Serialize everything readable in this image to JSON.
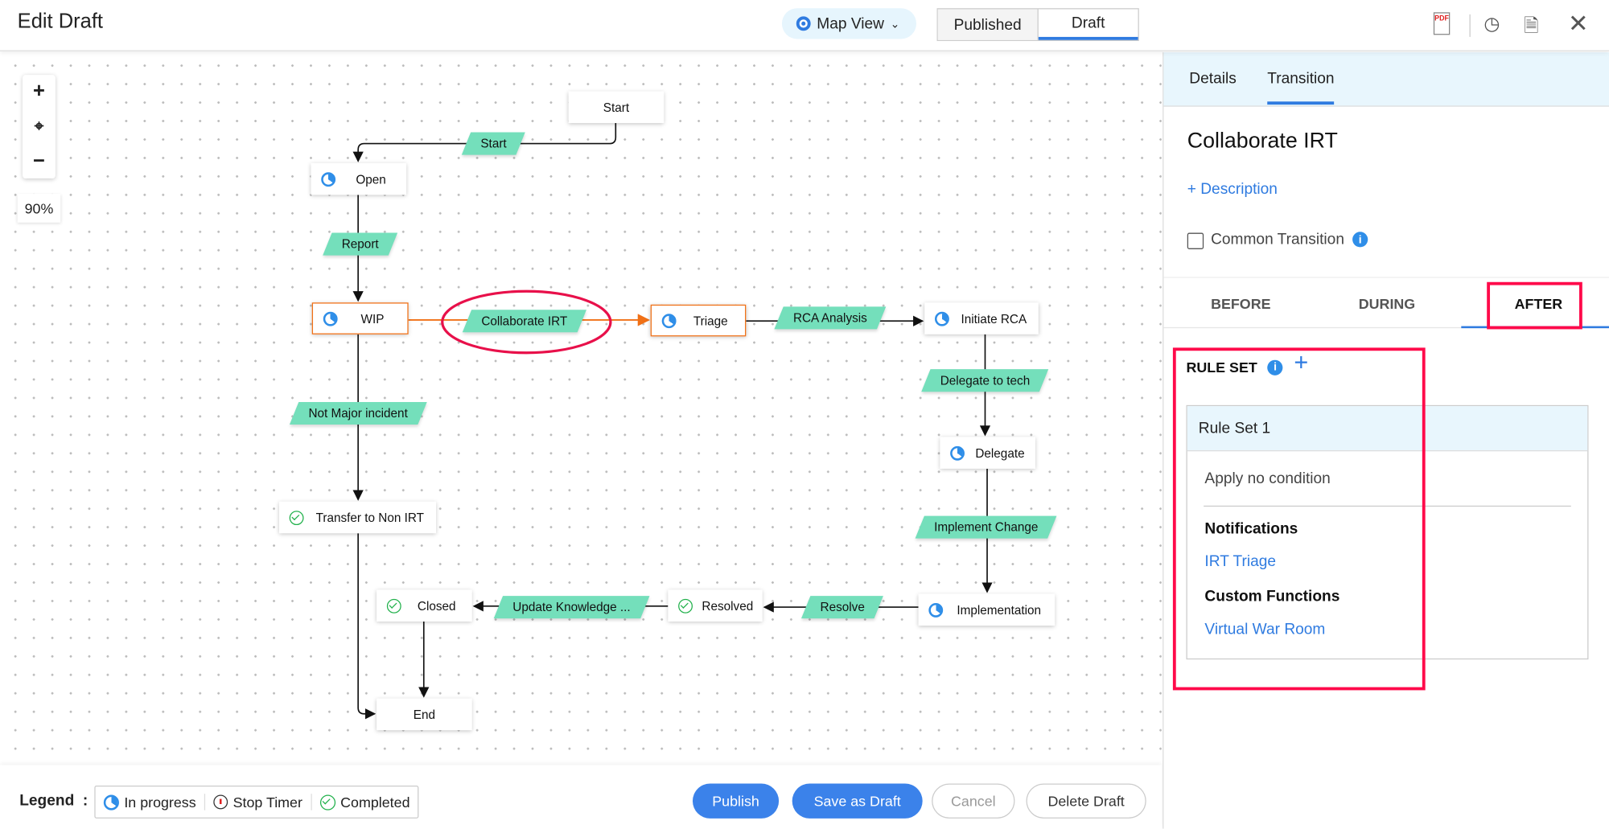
{
  "header": {
    "title": "Edit Draft",
    "view_selector": "Map View",
    "segments": [
      "Published",
      "Draft"
    ],
    "active_segment": "Draft",
    "icons": [
      "pdf-icon",
      "history-icon",
      "search-document-icon",
      "close-icon"
    ]
  },
  "canvas": {
    "zoom_in": "+",
    "zoom_out": "−",
    "zoom_level": "90%",
    "nodes": [
      {
        "id": "start",
        "label": "Start",
        "status": "none"
      },
      {
        "id": "open",
        "label": "Open",
        "status": "in-progress"
      },
      {
        "id": "wip",
        "label": "WIP",
        "status": "in-progress",
        "selected": true
      },
      {
        "id": "triage",
        "label": "Triage",
        "status": "in-progress",
        "selected": true
      },
      {
        "id": "initiate",
        "label": "Initiate RCA",
        "status": "in-progress"
      },
      {
        "id": "delegate",
        "label": "Delegate",
        "status": "in-progress"
      },
      {
        "id": "transfer",
        "label": "Transfer to Non IRT",
        "status": "completed"
      },
      {
        "id": "implementation",
        "label": "Implementation",
        "status": "in-progress"
      },
      {
        "id": "resolved",
        "label": "Resolved",
        "status": "completed"
      },
      {
        "id": "closed",
        "label": "Closed",
        "status": "completed"
      },
      {
        "id": "end",
        "label": "End",
        "status": "none"
      }
    ],
    "transitions": [
      "Start",
      "Report",
      "Collaborate IRT",
      "RCA Analysis",
      "Delegate to tech",
      "Not Major incident",
      "Implement Change",
      "Resolve",
      "Update Knowledge ..."
    ],
    "highlight_color": "#f07016",
    "transition_color": "#74dfbb"
  },
  "footer": {
    "legend_label": "Legend",
    "legend": [
      "In progress",
      "Stop Timer",
      "Completed"
    ],
    "publish": "Publish",
    "save_draft": "Save as Draft",
    "cancel": "Cancel",
    "delete_draft": "Delete Draft"
  },
  "panel": {
    "tabs": [
      "Details",
      "Transition"
    ],
    "active_tab": "Transition",
    "title": "Collaborate IRT",
    "add_description": "+ Description",
    "common_transition": "Common Transition",
    "common_transition_checked": false,
    "phases": [
      "BEFORE",
      "DURING",
      "AFTER"
    ],
    "active_phase": "AFTER",
    "rule_set_label": "RULE SET",
    "add_rule": "+",
    "rule_set": {
      "name": "Rule Set 1",
      "condition": "Apply no condition",
      "notifications_label": "Notifications",
      "notification": "IRT Triage",
      "custom_functions_label": "Custom Functions",
      "custom_function": "Virtual War Room"
    }
  }
}
